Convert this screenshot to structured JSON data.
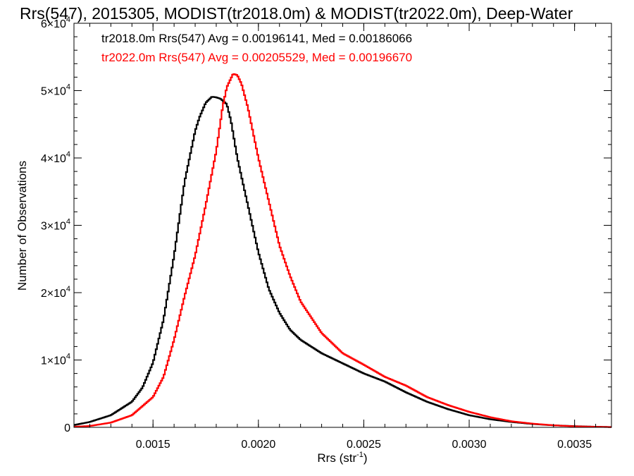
{
  "chart_data": {
    "type": "line",
    "title": "Rrs(547), 2015305, MODIST(tr2018.0m) & MODIST(tr2022.0m), Deep-Water",
    "xlabel_main": "Rrs (str",
    "xlabel_sup": "-1",
    "xlabel_end": ")",
    "ylabel": "Number of Observations",
    "xlim": [
      0.001125,
      0.003675
    ],
    "ylim": [
      0,
      60000
    ],
    "x_ticks": [
      {
        "value": 0.0015,
        "label": "0.0015"
      },
      {
        "value": 0.002,
        "label": "0.0020"
      },
      {
        "value": 0.0025,
        "label": "0.0025"
      },
      {
        "value": 0.003,
        "label": "0.0030"
      },
      {
        "value": 0.0035,
        "label": "0.0035"
      }
    ],
    "y_ticks": [
      {
        "value": 0,
        "mant": "0",
        "exp": ""
      },
      {
        "value": 10000,
        "mant": "1×10",
        "exp": "4"
      },
      {
        "value": 20000,
        "mant": "2×10",
        "exp": "4"
      },
      {
        "value": 30000,
        "mant": "3×10",
        "exp": "4"
      },
      {
        "value": 40000,
        "mant": "4×10",
        "exp": "4"
      },
      {
        "value": 50000,
        "mant": "5×10",
        "exp": "4"
      },
      {
        "value": 60000,
        "mant": "6×10",
        "exp": "4"
      }
    ],
    "annotations": [
      {
        "text": "tr2018.0m Rrs(547) Avg = 0.00196141, Med = 0.00186066",
        "color": "#000000"
      },
      {
        "text": "tr2022.0m Rrs(547) Avg = 0.00205529, Med = 0.00196670",
        "color": "#ff0000"
      }
    ],
    "series": [
      {
        "color": "#000000",
        "x": [
          0.00112,
          0.0012,
          0.0013,
          0.0014,
          0.00145,
          0.0015,
          0.00155,
          0.0016,
          0.00165,
          0.0017,
          0.00172,
          0.00175,
          0.00178,
          0.0018,
          0.00182,
          0.00185,
          0.00187,
          0.0019,
          0.00195,
          0.002,
          0.00205,
          0.0021,
          0.00215,
          0.0022,
          0.0023,
          0.0024,
          0.0025,
          0.0026,
          0.0027,
          0.0028,
          0.0029,
          0.003,
          0.0031,
          0.0032,
          0.0033,
          0.0034,
          0.0035,
          0.0036,
          0.00367
        ],
        "y": [
          300,
          800,
          1800,
          3800,
          5900,
          9600,
          16000,
          25500,
          36500,
          44000,
          46000,
          48200,
          49100,
          49000,
          48800,
          48000,
          45500,
          40000,
          33000,
          26000,
          20500,
          17000,
          14500,
          13000,
          11000,
          9500,
          8000,
          6800,
          5200,
          3800,
          2700,
          1800,
          1200,
          800,
          500,
          300,
          180,
          90,
          50
        ]
      },
      {
        "color": "#ff0000",
        "x": [
          0.00112,
          0.0012,
          0.0013,
          0.0014,
          0.0015,
          0.00155,
          0.0016,
          0.00165,
          0.0017,
          0.00175,
          0.0018,
          0.00183,
          0.00185,
          0.00188,
          0.0019,
          0.00192,
          0.00195,
          0.002,
          0.00205,
          0.0021,
          0.00215,
          0.0022,
          0.0023,
          0.0024,
          0.0025,
          0.0026,
          0.0027,
          0.0028,
          0.0029,
          0.003,
          0.0031,
          0.0032,
          0.0033,
          0.0034,
          0.0035,
          0.0036,
          0.00367
        ],
        "y": [
          80,
          200,
          700,
          1800,
          4500,
          7500,
          13000,
          19500,
          25500,
          33000,
          41000,
          47500,
          50500,
          52500,
          52300,
          51000,
          47500,
          40000,
          33500,
          27000,
          22500,
          18700,
          14000,
          11000,
          9300,
          7500,
          6200,
          4500,
          3300,
          2300,
          1500,
          900,
          550,
          300,
          150,
          80,
          40
        ]
      }
    ]
  }
}
